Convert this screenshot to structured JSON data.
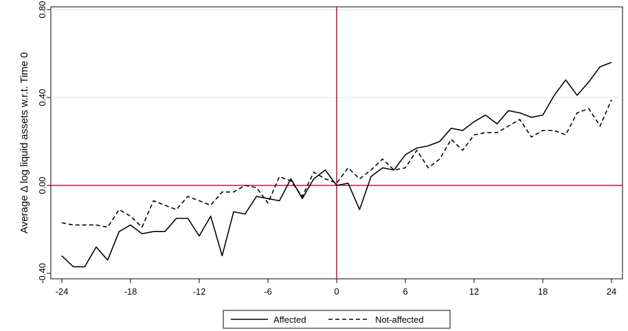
{
  "chart_data": {
    "type": "line",
    "title": "",
    "xlabel": "",
    "ylabel": "Average Δ log liquid assets w.r.t. Time 0",
    "xlim": [
      -24,
      24
    ],
    "ylim": [
      -0.4,
      0.8
    ],
    "xticks": [
      -24,
      -18,
      -12,
      -6,
      0,
      6,
      12,
      18,
      24
    ],
    "xtick_labels": [
      "-24",
      "-18",
      "-12",
      "-6",
      "0",
      "6",
      "12",
      "18",
      "24"
    ],
    "yticks": [
      -0.4,
      0.0,
      0.4,
      0.8
    ],
    "ytick_labels": [
      "-0.40",
      "0.00",
      "0.40",
      "0.80"
    ],
    "grid": "horizontal",
    "legend_position": "bottom",
    "reference_lines": {
      "x": 0,
      "y": 0,
      "color": "#c8102e"
    },
    "x": [
      -24,
      -23,
      -22,
      -21,
      -20,
      -19,
      -18,
      -17,
      -16,
      -15,
      -14,
      -13,
      -12,
      -11,
      -10,
      -9,
      -8,
      -7,
      -6,
      -5,
      -4,
      -3,
      -2,
      -1,
      0,
      1,
      2,
      3,
      4,
      5,
      6,
      7,
      8,
      9,
      10,
      11,
      12,
      13,
      14,
      15,
      16,
      17,
      18,
      19,
      20,
      21,
      22,
      23,
      24
    ],
    "series": [
      {
        "name": "Affected",
        "style": "solid",
        "values": [
          -0.32,
          -0.37,
          -0.37,
          -0.28,
          -0.34,
          -0.21,
          -0.18,
          -0.22,
          -0.21,
          -0.21,
          -0.15,
          -0.15,
          -0.23,
          -0.14,
          -0.32,
          -0.12,
          -0.13,
          -0.05,
          -0.06,
          -0.07,
          0.03,
          -0.06,
          0.03,
          0.07,
          0.0,
          0.01,
          -0.11,
          0.04,
          0.08,
          0.07,
          0.14,
          0.17,
          0.18,
          0.2,
          0.26,
          0.25,
          0.29,
          0.32,
          0.28,
          0.34,
          0.33,
          0.31,
          0.32,
          0.41,
          0.48,
          0.41,
          0.47,
          0.54,
          0.56
        ]
      },
      {
        "name": "Not-affected",
        "style": "dashed",
        "values": [
          -0.17,
          -0.18,
          -0.18,
          -0.18,
          -0.19,
          -0.11,
          -0.14,
          -0.19,
          -0.07,
          -0.09,
          -0.11,
          -0.05,
          -0.07,
          -0.09,
          -0.03,
          -0.03,
          0.0,
          -0.01,
          -0.08,
          0.04,
          0.02,
          -0.05,
          0.06,
          0.03,
          0.01,
          0.08,
          0.03,
          0.07,
          0.12,
          0.07,
          0.08,
          0.16,
          0.08,
          0.12,
          0.21,
          0.16,
          0.23,
          0.24,
          0.24,
          0.27,
          0.3,
          0.22,
          0.25,
          0.25,
          0.23,
          0.33,
          0.35,
          0.27,
          0.39
        ]
      }
    ]
  }
}
